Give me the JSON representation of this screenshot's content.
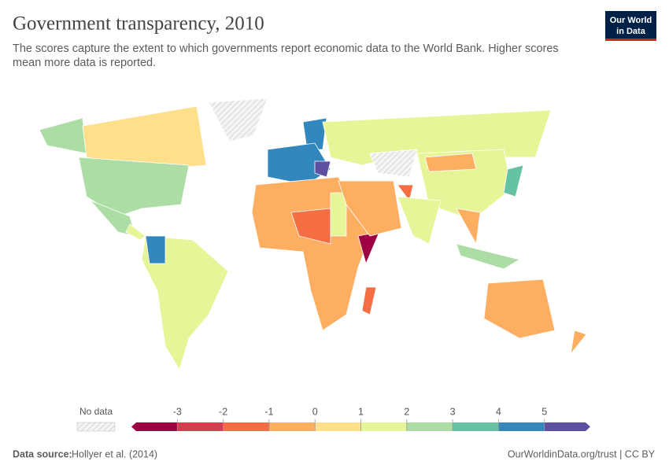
{
  "header": {
    "title": "Government transparency, 2010",
    "subtitle": [
      "The scores capture the extent to which governments report economic data to the World Bank. Higher scores",
      "mean more data is reported."
    ]
  },
  "logo": [
    "Our World",
    "in Data"
  ],
  "legend": {
    "no_data": "No data",
    "xlim": [
      -4,
      6
    ],
    "ticks": [
      -3,
      -2,
      -1,
      0,
      1,
      2,
      3,
      4,
      5
    ],
    "colors": [
      "#9e0142",
      "#d53e4f",
      "#f46d43",
      "#fdae61",
      "#fee08b",
      "#e6f598",
      "#abdda4",
      "#66c2a5",
      "#3288bd",
      "#5e4fa2"
    ]
  },
  "footer": {
    "source_label": "Data source:",
    "source": "Hollyer et al. (2014)",
    "right": "OurWorldinData.org/trust | CC BY"
  }
}
